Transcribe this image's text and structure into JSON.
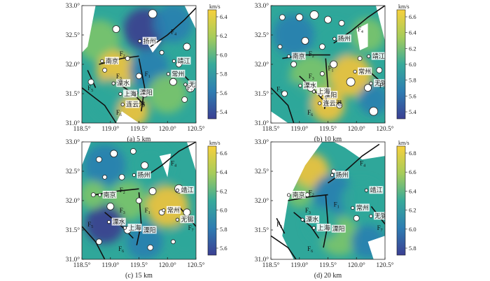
{
  "units": "km/s",
  "x_ticks": [
    "118.5°",
    "119.0°",
    "119.5°",
    "120.0°",
    "120.5°"
  ],
  "y_ticks": [
    "33.0°",
    "32.5°",
    "32.0°",
    "31.5°",
    "31.0°"
  ],
  "faults": [
    "F",
    "F",
    "F",
    "F",
    "F",
    "F",
    "F"
  ],
  "fault_subs": [
    "1",
    "2",
    "3",
    "4",
    "5",
    "6",
    "7"
  ],
  "cities": [
    "扬州",
    "南京",
    "靖江",
    "常州",
    "溧水",
    "溧阳",
    "上海",
    "无锡",
    "连云港"
  ],
  "panels": [
    {
      "caption": "(a) 5 km",
      "ticks": [
        "6.4",
        "6.2",
        "6.0",
        "5.8",
        "5.6",
        "5.4"
      ]
    },
    {
      "caption": "(b) 10 km",
      "ticks": [
        "6.6",
        "6.4",
        "6.2",
        "6.0",
        "5.8",
        "5.6",
        "5.4"
      ]
    },
    {
      "caption": "(c) 15 km",
      "ticks": [
        "6.6",
        "6.4",
        "6.2",
        "6.0",
        "5.8",
        "5.6"
      ]
    },
    {
      "caption": "(d) 20 km",
      "ticks": [
        "6.8",
        "6.6",
        "6.4",
        "6.2",
        "6.0",
        "5.8"
      ]
    }
  ],
  "colors": {
    "low": "#3a3f8f",
    "mid_low": "#2a7fb0",
    "mid": "#2fa79a",
    "mid_high": "#7cc46a",
    "high": "#f2c33a"
  }
}
